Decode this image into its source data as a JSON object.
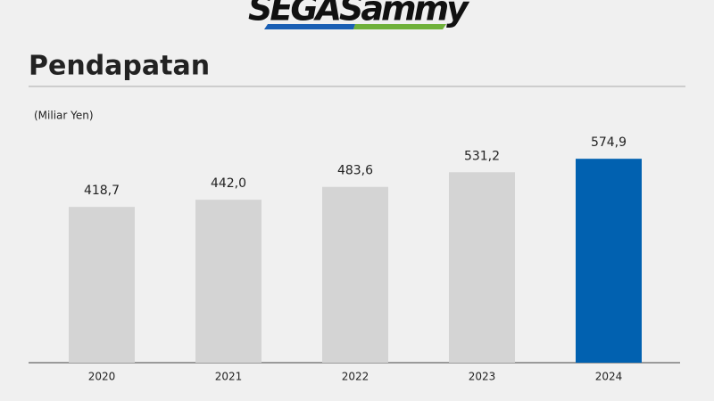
{
  "logo": "SEGASammy",
  "chart_data": {
    "type": "bar",
    "title": "Pendapatan",
    "unit_label": "(Miliar Yen)",
    "categories": [
      "2020",
      "2021",
      "2022",
      "2023",
      "2024"
    ],
    "values": [
      418.7,
      442.0,
      483.6,
      531.2,
      574.9
    ],
    "value_labels": [
      "418,7",
      "442,0",
      "483,6",
      "531,2",
      "574,9"
    ],
    "colors": [
      "#d4d4d4",
      "#d4d4d4",
      "#d4d4d4",
      "#d4d4d4",
      "#0161b0"
    ],
    "ylim": [
      -87,
      600
    ]
  }
}
